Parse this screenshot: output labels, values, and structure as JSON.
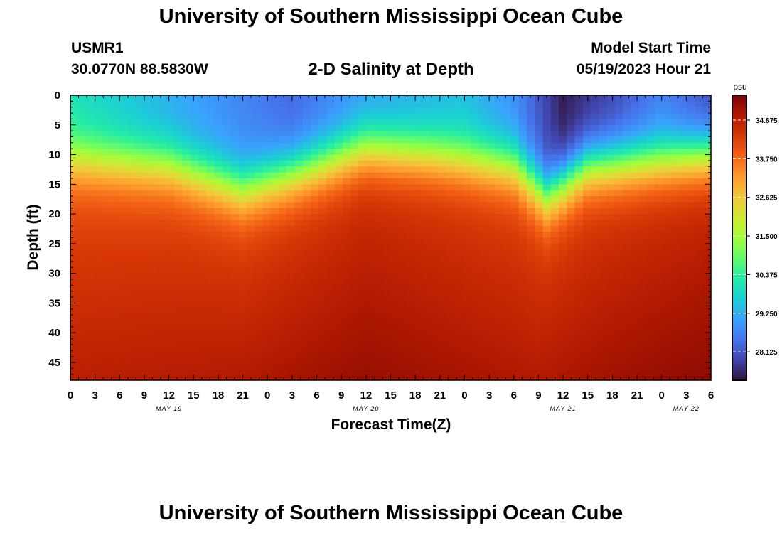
{
  "title": "University of Southern Mississippi Ocean Cube",
  "station": "USMR1",
  "coordinates": "30.0770N  88.5830W",
  "subtitle": "2-D Salinity at Depth",
  "model_start_label": "Model Start Time",
  "model_start_value": "05/19/2023 Hour 21",
  "footer_title": "University of Southern Mississippi Ocean Cube",
  "chart_data": {
    "type": "heatmap",
    "xlabel": "Forecast Time(Z)",
    "ylabel": "Depth (ft)",
    "x_ticks": [
      "0",
      "3",
      "6",
      "9",
      "12",
      "15",
      "18",
      "21",
      "0",
      "3",
      "6",
      "9",
      "12",
      "15",
      "18",
      "21",
      "0",
      "3",
      "6",
      "9",
      "12",
      "15",
      "18",
      "21",
      "0",
      "3",
      "6"
    ],
    "x_range_hours": [
      0,
      78
    ],
    "date_labels": [
      {
        "label": "MAY 19",
        "hour": 12
      },
      {
        "label": "MAY 20",
        "hour": 36
      },
      {
        "label": "MAY 21",
        "hour": 60
      },
      {
        "label": "MAY 22",
        "hour": 75
      }
    ],
    "y_ticks": [
      0,
      5,
      10,
      15,
      20,
      25,
      30,
      35,
      40,
      45
    ],
    "y_range": [
      0,
      48
    ],
    "y_inverted": true,
    "colorbar": {
      "unit": "psu",
      "range": [
        27.3,
        35.6
      ],
      "tick_labels": [
        "34.875",
        "33.750",
        "32.625",
        "31.500",
        "30.375",
        "29.250",
        "28.125"
      ],
      "tick_values": [
        34.875,
        33.75,
        32.625,
        31.5,
        30.375,
        29.25,
        28.125
      ],
      "colors": [
        "#30123b",
        "#4145ab",
        "#4675ed",
        "#39a2fc",
        "#1bcfd4",
        "#24eca6",
        "#61fc6c",
        "#a4fc3b",
        "#d1e834",
        "#f3c63a",
        "#fe9b2d",
        "#f36315",
        "#d93806",
        "#b11901",
        "#7a0403"
      ]
    },
    "halocline_depth_ft": [
      {
        "hour": 0,
        "depth": 11
      },
      {
        "hour": 12,
        "depth": 12
      },
      {
        "hour": 21,
        "depth": 16
      },
      {
        "hour": 30,
        "depth": 12
      },
      {
        "hour": 36,
        "depth": 9
      },
      {
        "hour": 44,
        "depth": 10
      },
      {
        "hour": 54,
        "depth": 12
      },
      {
        "hour": 58,
        "depth": 17
      },
      {
        "hour": 63,
        "depth": 12
      },
      {
        "hour": 72,
        "depth": 11
      },
      {
        "hour": 78,
        "depth": 10
      }
    ],
    "surface_salinity_psu": [
      {
        "hour": 0,
        "value": 30.0
      },
      {
        "hour": 12,
        "value": 29.2
      },
      {
        "hour": 21,
        "value": 28.7
      },
      {
        "hour": 27,
        "value": 28.3
      },
      {
        "hour": 36,
        "value": 29.0
      },
      {
        "hour": 48,
        "value": 29.4
      },
      {
        "hour": 54,
        "value": 28.8
      },
      {
        "hour": 60,
        "value": 27.4
      },
      {
        "hour": 66,
        "value": 27.9
      },
      {
        "hour": 72,
        "value": 28.6
      },
      {
        "hour": 78,
        "value": 27.9
      }
    ],
    "bottom_salinity_psu": [
      {
        "hour": 0,
        "value": 34.9
      },
      {
        "hour": 21,
        "value": 35.0
      },
      {
        "hour": 36,
        "value": 35.3
      },
      {
        "hour": 57,
        "value": 35.0
      },
      {
        "hour": 66,
        "value": 35.2
      },
      {
        "hour": 78,
        "value": 35.4
      }
    ]
  }
}
